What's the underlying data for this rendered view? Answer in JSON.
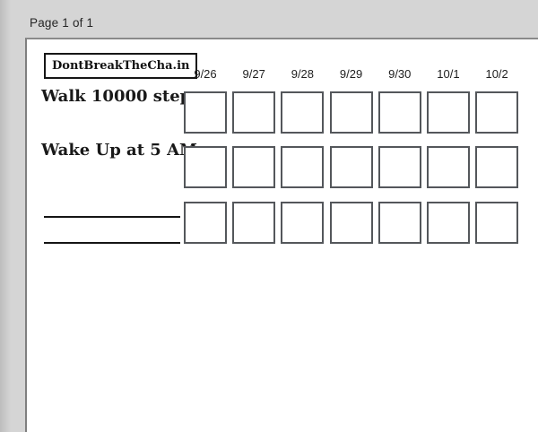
{
  "preview": {
    "page_label": "Page 1 of 1"
  },
  "page": {
    "logo": "DontBreakTheCha.in",
    "dates": [
      "9/26",
      "9/27",
      "9/28",
      "9/29",
      "9/30",
      "10/1",
      "10/2"
    ],
    "habits": [
      {
        "label": "Walk 10000 steps",
        "blank": false
      },
      {
        "label": "Wake Up at 5 AM",
        "blank": false
      },
      {
        "label": "",
        "blank": true
      }
    ],
    "columns": 7,
    "rows": 3
  },
  "colors": {
    "background": "#d5d5d5",
    "page": "#ffffff",
    "page_border": "#7f7f7f",
    "checkbox_border": "#54575b",
    "logo_border": "#161616",
    "write_line": "#141414",
    "text": "#191919"
  }
}
